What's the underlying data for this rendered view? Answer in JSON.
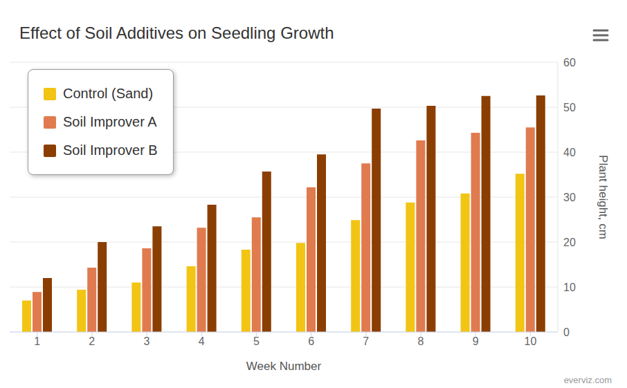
{
  "chart_data": {
    "type": "bar",
    "title": "Effect of Soil Additives on Seedling Growth",
    "x_label": "Week Number",
    "y_label": "Plant height, cm",
    "credits": "everviz.com",
    "categories": [
      "1",
      "2",
      "3",
      "4",
      "5",
      "6",
      "7",
      "8",
      "9",
      "10"
    ],
    "series": [
      {
        "name": "Control (Sand)",
        "color": "#f2c414",
        "values": [
          7,
          9.4,
          11,
          14.6,
          18.3,
          19.8,
          24.9,
          28.8,
          30.8,
          35.2
        ]
      },
      {
        "name": "Soil Improver A",
        "color": "#e07b4f",
        "values": [
          8.9,
          14.3,
          18.6,
          23.2,
          25.5,
          32.2,
          37.5,
          42.6,
          44.3,
          45.5
        ]
      },
      {
        "name": "Soil Improver B",
        "color": "#8b3e02",
        "values": [
          12,
          20,
          23.5,
          28.3,
          35.7,
          39.5,
          49.7,
          50.3,
          52.5,
          52.6
        ]
      }
    ],
    "ylim": [
      0,
      60
    ],
    "yticks": [
      0,
      10,
      20,
      30,
      40,
      50,
      60
    ],
    "grid": true,
    "legend": "upper left"
  }
}
